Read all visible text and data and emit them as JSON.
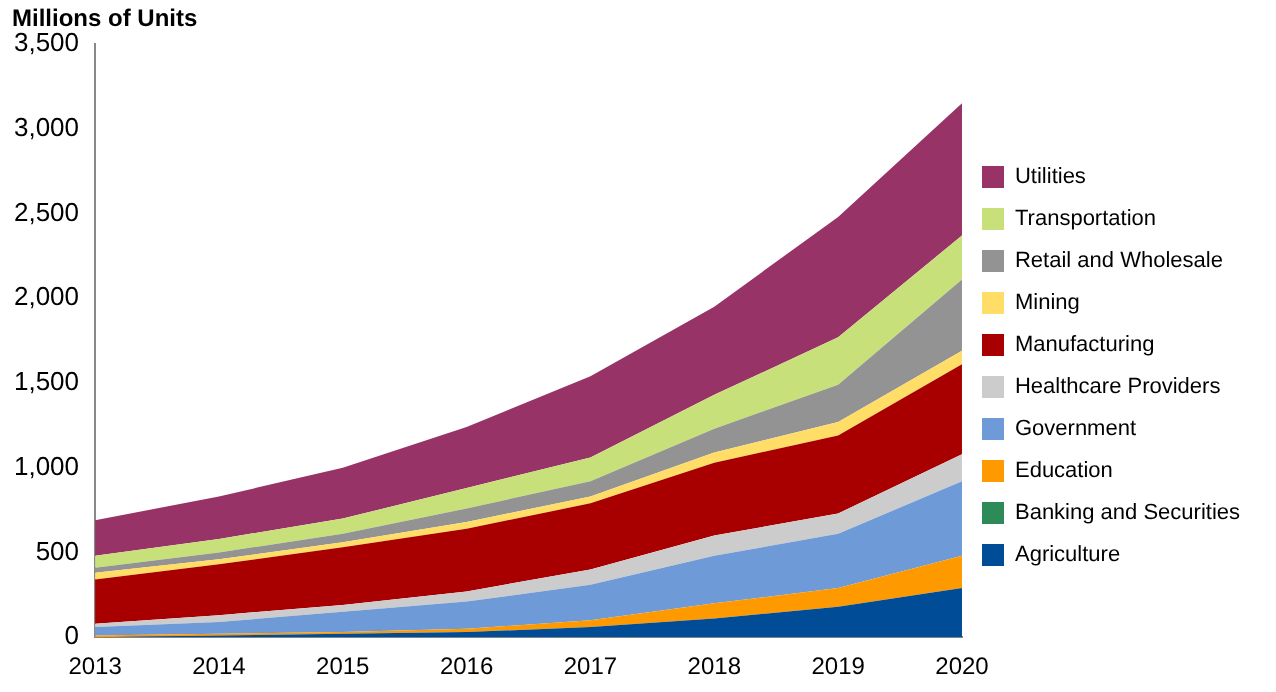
{
  "chart_data": {
    "type": "area",
    "stacked": true,
    "ylabel": "Millions of Units",
    "categories": [
      "2013",
      "2014",
      "2015",
      "2016",
      "2017",
      "2018",
      "2019",
      "2020"
    ],
    "ylim": [
      0,
      3500
    ],
    "yticks": [
      {
        "value": 0,
        "label": "0"
      },
      {
        "value": 500,
        "label": "500"
      },
      {
        "value": 1000,
        "label": "1,000"
      },
      {
        "value": 1500,
        "label": "1,500"
      },
      {
        "value": 2000,
        "label": "2,000"
      },
      {
        "value": 2500,
        "label": "2,500"
      },
      {
        "value": 3000,
        "label": "3,000"
      },
      {
        "value": 3500,
        "label": "3,500"
      }
    ],
    "grid": false,
    "legend": "right",
    "series": [
      {
        "name": "Agriculture",
        "color": "#004c97",
        "values": [
          0,
          10,
          20,
          30,
          60,
          110,
          180,
          290
        ]
      },
      {
        "name": "Banking and Securities",
        "color": "#2e8b57",
        "values": [
          null,
          null,
          null,
          null,
          null,
          null,
          null,
          null
        ]
      },
      {
        "name": "Education",
        "color": "#ff9900",
        "values": [
          10,
          10,
          10,
          20,
          40,
          90,
          110,
          190
        ]
      },
      {
        "name": "Government",
        "color": "#6f9ad8",
        "values": [
          50,
          70,
          120,
          160,
          210,
          280,
          320,
          440
        ]
      },
      {
        "name": "Healthcare Providers",
        "color": "#cccccc",
        "values": [
          20,
          40,
          40,
          60,
          90,
          120,
          120,
          160
        ]
      },
      {
        "name": "Manufacturing",
        "color": "#a80000",
        "values": [
          260,
          300,
          340,
          370,
          390,
          430,
          460,
          530
        ]
      },
      {
        "name": "Mining",
        "color": "#ffdd66",
        "values": [
          40,
          30,
          30,
          40,
          40,
          60,
          80,
          80
        ]
      },
      {
        "name": "Retail and Wholesale",
        "color": "#939393",
        "values": [
          30,
          40,
          50,
          80,
          90,
          140,
          220,
          420
        ]
      },
      {
        "name": "Transportation",
        "color": "#c8e07a",
        "values": [
          70,
          80,
          90,
          120,
          140,
          200,
          280,
          260
        ]
      },
      {
        "name": "Utilities",
        "color": "#973366",
        "values": [
          210,
          250,
          300,
          360,
          480,
          520,
          710,
          780
        ]
      }
    ]
  }
}
